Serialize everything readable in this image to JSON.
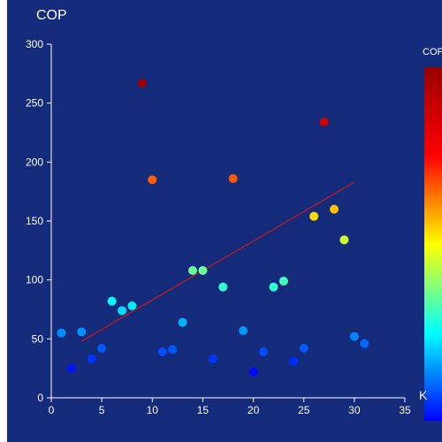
{
  "chart_data": {
    "type": "scatter",
    "ylabel": "COP",
    "xlabel": "K",
    "visual_map_label": "COP",
    "xlim": [
      0,
      35
    ],
    "ylim": [
      0,
      300
    ],
    "x_ticks": [
      0,
      5,
      10,
      15,
      20,
      25,
      30,
      35
    ],
    "y_ticks": [
      0,
      50,
      100,
      150,
      200,
      250,
      300
    ],
    "points": [
      {
        "x": 1,
        "y": 55
      },
      {
        "x": 2,
        "y": 25
      },
      {
        "x": 3,
        "y": 56
      },
      {
        "x": 4,
        "y": 33
      },
      {
        "x": 5,
        "y": 42
      },
      {
        "x": 6,
        "y": 82
      },
      {
        "x": 7,
        "y": 74
      },
      {
        "x": 8,
        "y": 78
      },
      {
        "x": 9,
        "y": 267
      },
      {
        "x": 10,
        "y": 185
      },
      {
        "x": 11,
        "y": 39
      },
      {
        "x": 12,
        "y": 41
      },
      {
        "x": 13,
        "y": 64
      },
      {
        "x": 14,
        "y": 108
      },
      {
        "x": 15,
        "y": 108
      },
      {
        "x": 16,
        "y": 33
      },
      {
        "x": 17,
        "y": 94
      },
      {
        "x": 18,
        "y": 186
      },
      {
        "x": 19,
        "y": 57
      },
      {
        "x": 20,
        "y": 22
      },
      {
        "x": 21,
        "y": 39
      },
      {
        "x": 22,
        "y": 94
      },
      {
        "x": 23,
        "y": 99
      },
      {
        "x": 24,
        "y": 31
      },
      {
        "x": 25,
        "y": 42
      },
      {
        "x": 26,
        "y": 154
      },
      {
        "x": 27,
        "y": 234
      },
      {
        "x": 28,
        "y": 160
      },
      {
        "x": 29,
        "y": 134
      },
      {
        "x": 30,
        "y": 52
      },
      {
        "x": 31,
        "y": 46
      }
    ],
    "trend_line": {
      "x": [
        3,
        30
      ],
      "y": [
        48,
        183
      ]
    },
    "color_scale": [
      "#0000ff",
      "#00ffff",
      "#ffff00",
      "#ff0000",
      "#990000"
    ],
    "color_range": [
      20,
      270
    ],
    "colors": {
      "background": "#142a7a",
      "axis": "#ffffff",
      "trend": "#cc1a1a"
    },
    "grid": false
  }
}
